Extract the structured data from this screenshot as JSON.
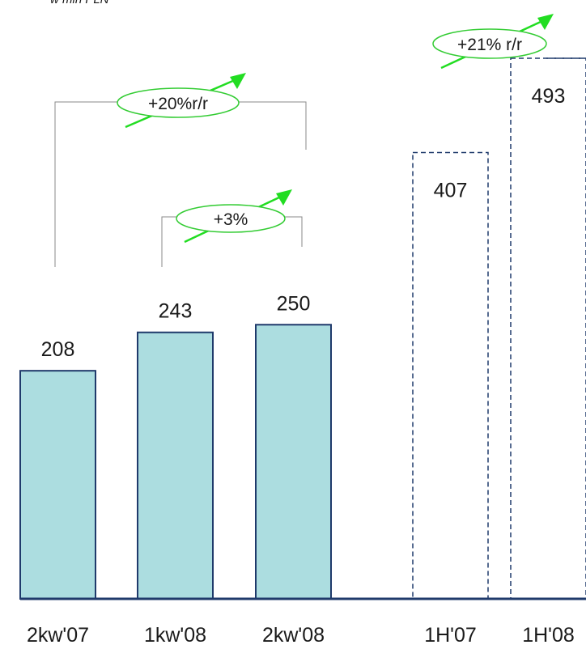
{
  "chart_data": {
    "type": "bar",
    "subtitle": "w mln PLN",
    "categories": [
      "2kw'07",
      "1kw'08",
      "2kw'08",
      "1H'07",
      "1H'08"
    ],
    "values": [
      208,
      243,
      250,
      407,
      493
    ],
    "colors": [
      "#acdde0",
      "#acdde0",
      "#acdde0",
      "#ffffff",
      "#ffffff"
    ],
    "dashed": [
      false,
      false,
      false,
      true,
      true
    ],
    "annotations": [
      "+20%r/r",
      "+3%",
      "+21% r/r"
    ]
  }
}
